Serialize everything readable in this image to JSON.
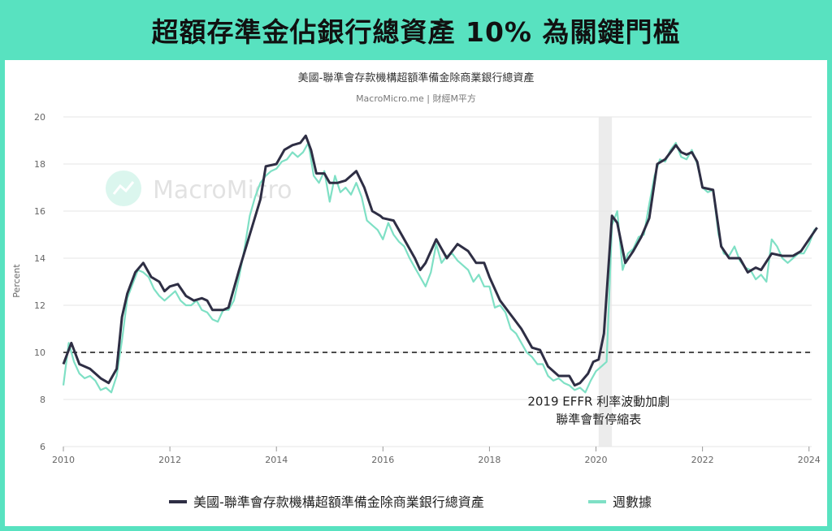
{
  "header": {
    "title": "超額存準金佔銀行總資產 10% 為關鍵門檻"
  },
  "chart_data": {
    "type": "line",
    "title": "美國-聯準會存款機構超額準備金除商業銀行總資產",
    "subtitle": "MacroMicro.me | 財經M平方",
    "watermark": "MacroMicro",
    "ylabel": "Percent",
    "xlabel": "",
    "ylim": [
      6,
      20
    ],
    "xlim": [
      2010,
      2024.4
    ],
    "yticks": [
      6,
      8,
      10,
      12,
      14,
      16,
      18,
      20
    ],
    "xticks": [
      "2010",
      "2012",
      "2014",
      "2016",
      "2018",
      "2020",
      "2022",
      "2024"
    ],
    "threshold": {
      "value": 10,
      "style": "dashed",
      "color": "#111111"
    },
    "shaded_region": [
      2020.05,
      2020.3
    ],
    "annotation": {
      "lines": [
        "2019 EFFR 利率波動加劇",
        "聯準會暫停縮表"
      ],
      "x": 2020.05
    },
    "grid": "horizontal",
    "legend_position": "bottom",
    "series": [
      {
        "name": "美國-聯準會存款機構超額準備金除商業銀行總資產",
        "color": "#2e2e44",
        "x": [
          2010.0,
          2010.15,
          2010.3,
          2010.5,
          2010.7,
          2010.85,
          2011.0,
          2011.1,
          2011.2,
          2011.35,
          2011.5,
          2011.65,
          2011.8,
          2011.9,
          2012.0,
          2012.15,
          2012.3,
          2012.45,
          2012.6,
          2012.7,
          2012.8,
          2013.0,
          2013.1,
          2013.3,
          2013.5,
          2013.7,
          2013.8,
          2014.0,
          2014.15,
          2014.3,
          2014.45,
          2014.55,
          2014.65,
          2014.75,
          2014.9,
          2015.0,
          2015.15,
          2015.3,
          2015.5,
          2015.65,
          2015.8,
          2015.95,
          2016.0,
          2016.2,
          2016.4,
          2016.6,
          2016.7,
          2016.8,
          2017.0,
          2017.2,
          2017.4,
          2017.6,
          2017.75,
          2017.9,
          2018.0,
          2018.2,
          2018.4,
          2018.6,
          2018.8,
          2018.95,
          2019.1,
          2019.3,
          2019.5,
          2019.6,
          2019.7,
          2019.85,
          2019.95,
          2020.05,
          2020.15,
          2020.3,
          2020.4,
          2020.55,
          2020.7,
          2020.85,
          2021.0,
          2021.15,
          2021.3,
          2021.5,
          2021.6,
          2021.7,
          2021.8,
          2021.9,
          2022.0,
          2022.2,
          2022.35,
          2022.5,
          2022.7,
          2022.85,
          2023.0,
          2023.1,
          2023.3,
          2023.5,
          2023.7,
          2023.85,
          2024.0,
          2024.15
        ],
        "values": [
          9.5,
          10.4,
          9.5,
          9.3,
          8.9,
          8.7,
          9.3,
          11.5,
          12.5,
          13.4,
          13.8,
          13.2,
          13.0,
          12.6,
          12.8,
          12.9,
          12.4,
          12.2,
          12.3,
          12.2,
          11.8,
          11.8,
          11.9,
          13.5,
          15.0,
          16.5,
          17.9,
          18.0,
          18.6,
          18.8,
          18.9,
          19.2,
          18.6,
          17.6,
          17.6,
          17.2,
          17.2,
          17.3,
          17.7,
          17.0,
          16.0,
          15.8,
          15.7,
          15.6,
          14.8,
          14.0,
          13.5,
          13.8,
          14.8,
          14.0,
          14.6,
          14.3,
          13.8,
          13.8,
          13.2,
          12.2,
          11.6,
          11.0,
          10.2,
          10.1,
          9.4,
          9.0,
          9.0,
          8.6,
          8.7,
          9.1,
          9.6,
          9.7,
          10.8,
          15.8,
          15.5,
          13.8,
          14.3,
          14.9,
          15.7,
          18.0,
          18.2,
          18.8,
          18.5,
          18.4,
          18.5,
          18.1,
          17.0,
          16.9,
          14.5,
          14.0,
          14.0,
          13.4,
          13.6,
          13.5,
          14.2,
          14.1,
          14.1,
          14.3,
          14.8,
          15.3
        ]
      },
      {
        "name": "週數據",
        "color": "#7fe0c5",
        "x": [
          2010.0,
          2010.1,
          2010.2,
          2010.3,
          2010.4,
          2010.5,
          2010.6,
          2010.7,
          2010.8,
          2010.9,
          2011.0,
          2011.1,
          2011.2,
          2011.3,
          2011.4,
          2011.5,
          2011.6,
          2011.7,
          2011.8,
          2011.9,
          2012.0,
          2012.1,
          2012.2,
          2012.3,
          2012.4,
          2012.5,
          2012.6,
          2012.7,
          2012.8,
          2012.9,
          2013.0,
          2013.1,
          2013.2,
          2013.3,
          2013.4,
          2013.5,
          2013.6,
          2013.7,
          2013.8,
          2013.9,
          2014.0,
          2014.1,
          2014.2,
          2014.3,
          2014.4,
          2014.5,
          2014.6,
          2014.7,
          2014.8,
          2014.9,
          2015.0,
          2015.1,
          2015.2,
          2015.3,
          2015.4,
          2015.5,
          2015.6,
          2015.7,
          2015.8,
          2015.9,
          2016.0,
          2016.1,
          2016.2,
          2016.3,
          2016.4,
          2016.5,
          2016.6,
          2016.7,
          2016.8,
          2016.9,
          2017.0,
          2017.1,
          2017.2,
          2017.3,
          2017.4,
          2017.5,
          2017.6,
          2017.7,
          2017.8,
          2017.9,
          2018.0,
          2018.1,
          2018.2,
          2018.3,
          2018.4,
          2018.5,
          2018.6,
          2018.7,
          2018.8,
          2018.9,
          2019.0,
          2019.1,
          2019.2,
          2019.3,
          2019.4,
          2019.5,
          2019.6,
          2019.7,
          2019.8,
          2019.9,
          2020.0,
          2020.1,
          2020.2,
          2020.3,
          2020.4,
          2020.5,
          2020.6,
          2020.7,
          2020.8,
          2020.9,
          2021.0,
          2021.1,
          2021.2,
          2021.3,
          2021.4,
          2021.5,
          2021.6,
          2021.7,
          2021.8,
          2021.9,
          2022.0,
          2022.1,
          2022.2,
          2022.3,
          2022.4,
          2022.5,
          2022.6,
          2022.7,
          2022.8,
          2022.9,
          2023.0,
          2023.1,
          2023.2,
          2023.3,
          2023.4,
          2023.5,
          2023.6,
          2023.7,
          2023.8,
          2023.9,
          2024.0,
          2024.1,
          2024.15
        ],
        "values": [
          8.6,
          10.4,
          9.6,
          9.1,
          8.9,
          9.0,
          8.8,
          8.4,
          8.5,
          8.3,
          9.0,
          10.5,
          12.3,
          12.9,
          13.5,
          13.4,
          13.2,
          12.7,
          12.4,
          12.2,
          12.4,
          12.6,
          12.2,
          12.0,
          12.0,
          12.2,
          11.8,
          11.7,
          11.4,
          11.3,
          11.8,
          11.8,
          12.2,
          13.2,
          14.4,
          15.8,
          16.6,
          17.2,
          17.5,
          17.7,
          17.8,
          18.1,
          18.2,
          18.5,
          18.3,
          18.5,
          18.9,
          17.5,
          17.2,
          17.7,
          16.4,
          17.5,
          16.8,
          17.0,
          16.7,
          17.2,
          16.6,
          15.6,
          15.4,
          15.2,
          14.8,
          15.5,
          15.0,
          14.7,
          14.5,
          14.0,
          13.6,
          13.2,
          12.8,
          13.4,
          14.6,
          13.8,
          14.1,
          14.2,
          13.9,
          13.7,
          13.5,
          13.0,
          13.3,
          12.8,
          12.8,
          11.9,
          12.0,
          11.7,
          11.0,
          10.8,
          10.4,
          10.0,
          9.8,
          9.5,
          9.5,
          9.0,
          8.8,
          8.9,
          8.7,
          8.6,
          8.4,
          8.5,
          8.3,
          8.8,
          9.2,
          9.4,
          9.6,
          15.4,
          16.0,
          13.5,
          14.2,
          14.4,
          14.9,
          15.0,
          16.3,
          17.5,
          18.2,
          18.1,
          18.6,
          18.9,
          18.3,
          18.2,
          18.6,
          18.0,
          17.0,
          16.8,
          16.9,
          15.0,
          14.2,
          14.1,
          14.5,
          13.9,
          13.6,
          13.5,
          13.1,
          13.3,
          13.0,
          14.8,
          14.5,
          14.0,
          13.8,
          14.0,
          14.2,
          14.2,
          14.6,
          15.2,
          15.3
        ]
      }
    ]
  }
}
